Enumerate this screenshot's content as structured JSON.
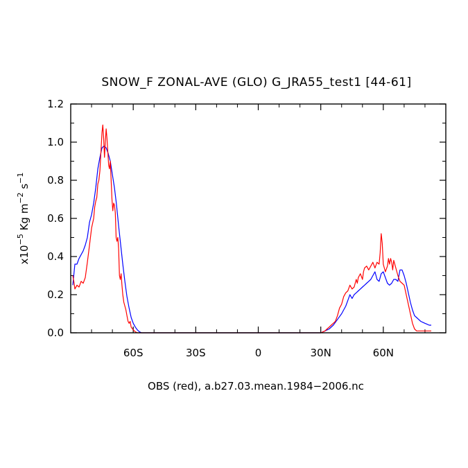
{
  "chart_data": {
    "type": "line",
    "title": "SNOW_F ZONAL-AVE (GLO) G_JRA55_test1 [44-61]",
    "ylabel": {
      "prefix": "x10",
      "exp1": "−5",
      "unit": " Kg m",
      "exp2": "−2",
      "mid": " s",
      "exp3": "−1"
    },
    "xlabel": "",
    "footnote": "OBS (red), a.b27.03.mean.1984−2006.nc",
    "xlim": [
      -90,
      90
    ],
    "ylim": [
      0,
      1.2
    ],
    "x_ticks": [
      {
        "value": -60,
        "label": "60S"
      },
      {
        "value": -30,
        "label": "30S"
      },
      {
        "value": 0,
        "label": "0"
      },
      {
        "value": 30,
        "label": "30N"
      },
      {
        "value": 60,
        "label": "60N"
      }
    ],
    "y_ticks": [
      {
        "value": 0.0,
        "label": "0.0"
      },
      {
        "value": 0.2,
        "label": "0.2"
      },
      {
        "value": 0.4,
        "label": "0.4"
      },
      {
        "value": 0.6,
        "label": "0.6"
      },
      {
        "value": 0.8,
        "label": "0.8"
      },
      {
        "value": 1.0,
        "label": "1.0"
      },
      {
        "value": 1.2,
        "label": "1.2"
      }
    ],
    "series": [
      {
        "color": "#0000ff",
        "points": [
          [
            -89,
            0.25
          ],
          [
            -88,
            0.36
          ],
          [
            -87,
            0.36
          ],
          [
            -86,
            0.39
          ],
          [
            -85,
            0.41
          ],
          [
            -84,
            0.43
          ],
          [
            -83,
            0.46
          ],
          [
            -82,
            0.5
          ],
          [
            -81,
            0.58
          ],
          [
            -80,
            0.62
          ],
          [
            -79,
            0.68
          ],
          [
            -78,
            0.76
          ],
          [
            -77,
            0.86
          ],
          [
            -76,
            0.92
          ],
          [
            -75,
            0.97
          ],
          [
            -74,
            0.98
          ],
          [
            -73,
            0.97
          ],
          [
            -72,
            0.94
          ],
          [
            -71,
            0.9
          ],
          [
            -70,
            0.83
          ],
          [
            -69,
            0.76
          ],
          [
            -68,
            0.67
          ],
          [
            -67,
            0.56
          ],
          [
            -66,
            0.46
          ],
          [
            -65,
            0.36
          ],
          [
            -64,
            0.27
          ],
          [
            -63,
            0.19
          ],
          [
            -62,
            0.13
          ],
          [
            -61,
            0.08
          ],
          [
            -60,
            0.05
          ],
          [
            -59,
            0.03
          ],
          [
            -58,
            0.015
          ],
          [
            -57,
            0.005
          ],
          [
            -56,
            0.0
          ],
          [
            -50,
            0.0
          ],
          [
            -30,
            0.0
          ],
          [
            0,
            0.0
          ],
          [
            20,
            0.0
          ],
          [
            28,
            0.0
          ],
          [
            30,
            0.0
          ],
          [
            32,
            0.01
          ],
          [
            34,
            0.02
          ],
          [
            36,
            0.04
          ],
          [
            38,
            0.07
          ],
          [
            40,
            0.1
          ],
          [
            42,
            0.14
          ],
          [
            43,
            0.17
          ],
          [
            44,
            0.2
          ],
          [
            45,
            0.18
          ],
          [
            46,
            0.2
          ],
          [
            47,
            0.21
          ],
          [
            48,
            0.22
          ],
          [
            49,
            0.23
          ],
          [
            50,
            0.24
          ],
          [
            51,
            0.25
          ],
          [
            52,
            0.26
          ],
          [
            53,
            0.27
          ],
          [
            54,
            0.28
          ],
          [
            55,
            0.3
          ],
          [
            56,
            0.32
          ],
          [
            57,
            0.28
          ],
          [
            58,
            0.27
          ],
          [
            59,
            0.31
          ],
          [
            60,
            0.32
          ],
          [
            61,
            0.29
          ],
          [
            62,
            0.26
          ],
          [
            63,
            0.25
          ],
          [
            64,
            0.26
          ],
          [
            65,
            0.28
          ],
          [
            66,
            0.28
          ],
          [
            67,
            0.27
          ],
          [
            68,
            0.33
          ],
          [
            69,
            0.33
          ],
          [
            70,
            0.3
          ],
          [
            71,
            0.26
          ],
          [
            72,
            0.21
          ],
          [
            73,
            0.16
          ],
          [
            74,
            0.12
          ],
          [
            75,
            0.09
          ],
          [
            76,
            0.08
          ],
          [
            77,
            0.07
          ],
          [
            78,
            0.06
          ],
          [
            79,
            0.055
          ],
          [
            80,
            0.05
          ],
          [
            81,
            0.045
          ],
          [
            82,
            0.04
          ],
          [
            83,
            0.04
          ]
        ]
      },
      {
        "color": "#ff0000",
        "points": [
          [
            -89,
            0.3
          ],
          [
            -88.5,
            0.27
          ],
          [
            -88,
            0.23
          ],
          [
            -87,
            0.25
          ],
          [
            -86,
            0.24
          ],
          [
            -85,
            0.27
          ],
          [
            -84,
            0.26
          ],
          [
            -83,
            0.29
          ],
          [
            -82,
            0.37
          ],
          [
            -81,
            0.46
          ],
          [
            -80,
            0.55
          ],
          [
            -79,
            0.6
          ],
          [
            -78.5,
            0.66
          ],
          [
            -78,
            0.69
          ],
          [
            -77.5,
            0.71
          ],
          [
            -77,
            0.78
          ],
          [
            -76.5,
            0.8
          ],
          [
            -76,
            0.85
          ],
          [
            -75.5,
            0.95
          ],
          [
            -75,
            1.05
          ],
          [
            -74.6,
            1.09
          ],
          [
            -74.2,
            1.02
          ],
          [
            -73.8,
            0.92
          ],
          [
            -73.4,
            1.0
          ],
          [
            -73,
            1.07
          ],
          [
            -72.6,
            1.02
          ],
          [
            -72.2,
            0.95
          ],
          [
            -71.8,
            0.88
          ],
          [
            -71.4,
            0.86
          ],
          [
            -71,
            0.9
          ],
          [
            -70.6,
            0.8
          ],
          [
            -70.2,
            0.7
          ],
          [
            -69.8,
            0.64
          ],
          [
            -69.4,
            0.68
          ],
          [
            -69,
            0.67
          ],
          [
            -68.6,
            0.63
          ],
          [
            -68.2,
            0.5
          ],
          [
            -67.8,
            0.48
          ],
          [
            -67.4,
            0.5
          ],
          [
            -67,
            0.44
          ],
          [
            -66.6,
            0.3
          ],
          [
            -66.2,
            0.28
          ],
          [
            -65.8,
            0.31
          ],
          [
            -65.4,
            0.25
          ],
          [
            -65,
            0.2
          ],
          [
            -64.5,
            0.16
          ],
          [
            -64,
            0.14
          ],
          [
            -63.5,
            0.12
          ],
          [
            -63,
            0.09
          ],
          [
            -62.5,
            0.06
          ],
          [
            -62,
            0.05
          ],
          [
            -61.5,
            0.06
          ],
          [
            -61,
            0.03
          ],
          [
            -60,
            0.015
          ],
          [
            -59,
            0.005
          ],
          [
            -58,
            0.0
          ],
          [
            -50,
            0.0
          ],
          [
            -30,
            0.0
          ],
          [
            0,
            0.0
          ],
          [
            20,
            0.0
          ],
          [
            28,
            0.0
          ],
          [
            30,
            0.0
          ],
          [
            32,
            0.01
          ],
          [
            33,
            0.02
          ],
          [
            34,
            0.03
          ],
          [
            35,
            0.04
          ],
          [
            36,
            0.05
          ],
          [
            37,
            0.06
          ],
          [
            38,
            0.09
          ],
          [
            39,
            0.13
          ],
          [
            40,
            0.15
          ],
          [
            41,
            0.19
          ],
          [
            42,
            0.21
          ],
          [
            43,
            0.22
          ],
          [
            44,
            0.25
          ],
          [
            45,
            0.23
          ],
          [
            46,
            0.24
          ],
          [
            47,
            0.28
          ],
          [
            47.5,
            0.26
          ],
          [
            48,
            0.29
          ],
          [
            49,
            0.31
          ],
          [
            50,
            0.28
          ],
          [
            50.5,
            0.32
          ],
          [
            51,
            0.34
          ],
          [
            52,
            0.35
          ],
          [
            53,
            0.33
          ],
          [
            54,
            0.35
          ],
          [
            55,
            0.37
          ],
          [
            56,
            0.34
          ],
          [
            57,
            0.37
          ],
          [
            58,
            0.36
          ],
          [
            58.5,
            0.42
          ],
          [
            59,
            0.52
          ],
          [
            59.5,
            0.47
          ],
          [
            60,
            0.36
          ],
          [
            61,
            0.32
          ],
          [
            62,
            0.35
          ],
          [
            62.5,
            0.39
          ],
          [
            63,
            0.36
          ],
          [
            63.5,
            0.39
          ],
          [
            64,
            0.37
          ],
          [
            64.5,
            0.33
          ],
          [
            65,
            0.38
          ],
          [
            66,
            0.34
          ],
          [
            67,
            0.3
          ],
          [
            68,
            0.27
          ],
          [
            69,
            0.26
          ],
          [
            70,
            0.25
          ],
          [
            71,
            0.2
          ],
          [
            72,
            0.15
          ],
          [
            73,
            0.1
          ],
          [
            74,
            0.05
          ],
          [
            75,
            0.02
          ],
          [
            76,
            0.01
          ],
          [
            80,
            0.01
          ],
          [
            83,
            0.01
          ]
        ]
      }
    ]
  }
}
